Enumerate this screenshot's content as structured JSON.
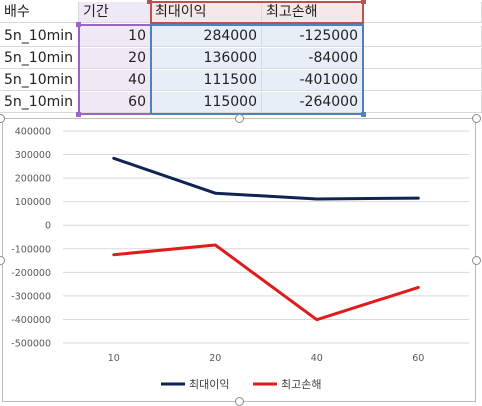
{
  "sheet": {
    "headers": [
      "배수",
      "기간",
      "최대이익",
      "최고손해"
    ],
    "rows": [
      {
        "multiplier": "5n_10min",
        "period": "10",
        "max_profit": "284000",
        "max_loss": "-125000"
      },
      {
        "multiplier": "5n_10min",
        "period": "20",
        "max_profit": "136000",
        "max_loss": "-84000"
      },
      {
        "multiplier": "5n_10min",
        "period": "40",
        "max_profit": "111500",
        "max_loss": "-401000"
      },
      {
        "multiplier": "5n_10min",
        "period": "60",
        "max_profit": "115000",
        "max_loss": "-264000"
      }
    ]
  },
  "chart_data": {
    "type": "line",
    "categories": [
      "10",
      "20",
      "40",
      "60"
    ],
    "series": [
      {
        "name": "최대이익",
        "values": [
          284000,
          136000,
          111500,
          115000
        ],
        "color": "#0e2451"
      },
      {
        "name": "최고손해",
        "values": [
          -125000,
          -84000,
          -401000,
          -264000
        ],
        "color": "#e01b1b"
      }
    ],
    "y_ticks": [
      "400000",
      "300000",
      "200000",
      "100000",
      "0",
      "-100000",
      "-200000",
      "-300000",
      "-400000",
      "-500000"
    ],
    "ylim": [
      -500000,
      400000
    ],
    "grid": true,
    "legend_position": "bottom",
    "title": "",
    "xlabel": "",
    "ylabel": ""
  }
}
